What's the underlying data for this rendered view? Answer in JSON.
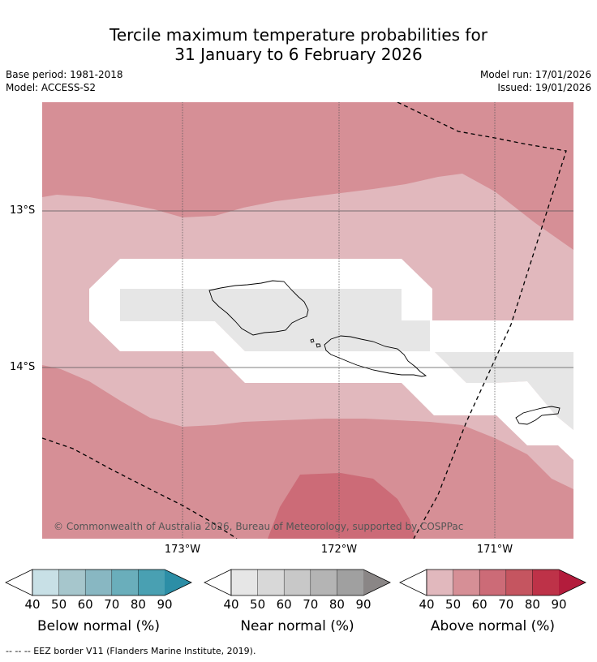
{
  "title": {
    "line1": "Tercile maximum temperature probabilities for",
    "line2": "31 January to 6 February 2026"
  },
  "meta": {
    "base_period": "Base period: 1981-2018",
    "model": "Model: ACCESS-S2",
    "model_run": "Model run: 17/01/2026",
    "issued": "Issued: 19/01/2026"
  },
  "map": {
    "lat_labels": [
      "13°S",
      "14°S"
    ],
    "lon_labels": [
      "173°W",
      "172°W",
      "171°W"
    ],
    "copyright": "© Commonwealth of Australia 2026, Bureau of Meteorology, supported by COSPPac",
    "colors": {
      "above_40": "#e1b8bd",
      "above_50": "#d68f96",
      "above_60": "#cc6b77",
      "near": "#e6e6e6",
      "land_outline": "#000000",
      "grid": "#555555"
    },
    "islands": [
      "Savai'i",
      "Upolu",
      "Tutuila"
    ]
  },
  "colorbars": [
    {
      "name": "below",
      "title": "Below normal (%)",
      "ticks": [
        "40",
        "50",
        "60",
        "70",
        "80",
        "90"
      ],
      "colors": [
        "#c8e0e6",
        "#a6c6cc",
        "#88b7c2",
        "#6aaebb",
        "#49a0b2",
        "#2c8ea6"
      ]
    },
    {
      "name": "near",
      "title": "Near normal (%)",
      "ticks": [
        "40",
        "50",
        "60",
        "70",
        "80",
        "90"
      ],
      "colors": [
        "#e6e6e6",
        "#d8d8d8",
        "#c8c8c8",
        "#b4b4b4",
        "#a0a0a0",
        "#8a8686"
      ]
    },
    {
      "name": "above",
      "title": "Above normal (%)",
      "ticks": [
        "40",
        "50",
        "60",
        "70",
        "80",
        "90"
      ],
      "colors": [
        "#e1b8bd",
        "#d68f96",
        "#cc6b77",
        "#c55560",
        "#be3248",
        "#b31c3c"
      ]
    }
  ],
  "footer": "--  --  -- EEZ border V11 (Flanders Marine Institute, 2019)."
}
